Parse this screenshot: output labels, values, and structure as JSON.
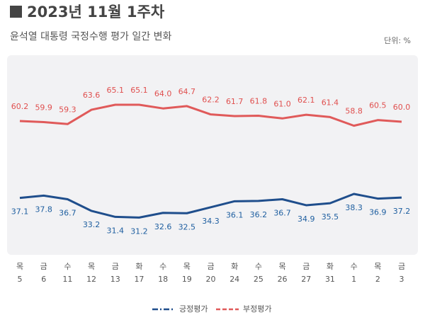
{
  "chart_data": {
    "type": "line",
    "title": "2023년 11월 1주차",
    "subtitle": "윤석열 대통령 국정수행 평가 일간 변화",
    "unit": "단위: %",
    "categories": [
      [
        "목",
        "5"
      ],
      [
        "금",
        "6"
      ],
      [
        "수",
        "11"
      ],
      [
        "목",
        "12"
      ],
      [
        "금",
        "13"
      ],
      [
        "화",
        "17"
      ],
      [
        "수",
        "18"
      ],
      [
        "목",
        "19"
      ],
      [
        "금",
        "20"
      ],
      [
        "화",
        "24"
      ],
      [
        "수",
        "25"
      ],
      [
        "목",
        "26"
      ],
      [
        "금",
        "27"
      ],
      [
        "화",
        "31"
      ],
      [
        "수",
        "1"
      ],
      [
        "목",
        "2"
      ],
      [
        "금",
        "3"
      ]
    ],
    "series": [
      {
        "name": "긍정평가",
        "color": "#1f4e8c",
        "label_color": "#1f5fa0",
        "dash": "dashdot",
        "values": [
          37.1,
          37.8,
          36.7,
          33.2,
          31.4,
          31.2,
          32.6,
          32.5,
          34.3,
          36.1,
          36.2,
          36.7,
          34.9,
          35.5,
          38.3,
          36.9,
          37.2
        ]
      },
      {
        "name": "부정평가",
        "color": "#e05a5a",
        "label_color": "#e0504f",
        "dash": "dashed",
        "values": [
          60.2,
          59.9,
          59.3,
          63.6,
          65.1,
          65.1,
          64.0,
          64.7,
          62.2,
          61.7,
          61.8,
          61.0,
          62.1,
          61.4,
          58.8,
          60.5,
          60.0
        ],
        "value_labels": [
          "60.2",
          "59.9",
          "59.3",
          "63.6",
          "65.1",
          "65.1",
          "64.0",
          "64.7",
          "62.2",
          "61.7",
          "61.8",
          "61.0",
          "62.1",
          "61.4",
          "58.8",
          "60.5",
          "60.0"
        ]
      }
    ],
    "ylim": [
      20,
      80
    ]
  }
}
